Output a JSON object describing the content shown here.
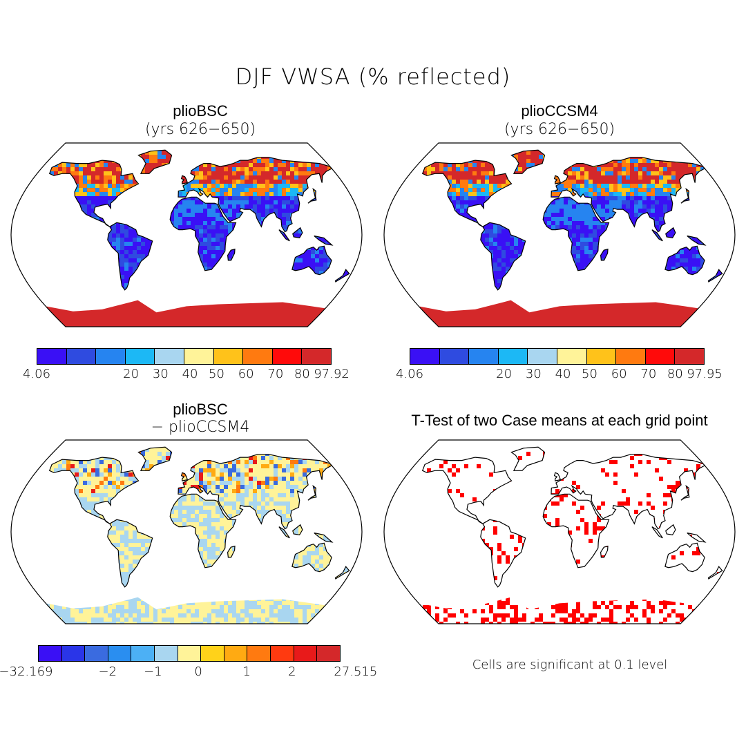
{
  "main_title": "DJF VWSA (% reflected)",
  "panels": {
    "tl": {
      "title": "plioBSC",
      "subtitle": "(yrs 626−650)"
    },
    "tr": {
      "title": "plioCCSM4",
      "subtitle": "(yrs 626−650)"
    },
    "bl": {
      "title": "plioBSC",
      "subtitle": "− plioCCSM4"
    },
    "br": {
      "title": "T-Test of two Case means at each grid point",
      "note": "Cells are significant at 0.1 level"
    }
  },
  "colorbars": {
    "tl": {
      "colors": [
        "#3a10f5",
        "#2f4be0",
        "#2684f0",
        "#1cb8f5",
        "#a9d6f0",
        "#fff399",
        "#ffc21a",
        "#ff7a10",
        "#ff0a0a",
        "#d4282a"
      ],
      "ticks": [
        "4.06",
        "20",
        "30",
        "40",
        "50",
        "60",
        "70",
        "80",
        "97.92"
      ]
    },
    "tr": {
      "colors": [
        "#3a10f5",
        "#2f4be0",
        "#2684f0",
        "#1cb8f5",
        "#a9d6f0",
        "#fff399",
        "#ffc21a",
        "#ff7a10",
        "#ff0a0a",
        "#d4282a"
      ],
      "ticks": [
        "4.06",
        "20",
        "30",
        "40",
        "50",
        "60",
        "70",
        "80",
        "97.95"
      ]
    },
    "bl": {
      "colors": [
        "#3a10f5",
        "#2a35e8",
        "#3a6be0",
        "#2a8ef0",
        "#4cb0f5",
        "#a9d6f0",
        "#fff399",
        "#ffd21a",
        "#ffaa12",
        "#ff7a10",
        "#ff3a10",
        "#e81a1a",
        "#d4282a"
      ],
      "ticks": [
        "−32.169",
        "−2",
        "−1",
        "0",
        "1",
        "2",
        "27.515"
      ]
    }
  },
  "map_colors": {
    "ocean": "#ffffff",
    "coast": "#000000",
    "high": "#d4282a",
    "low": "#3a10f5",
    "mid": "#2684f0",
    "diff_base": "#a9d6f0",
    "diff_warm": "#fff399",
    "signif": "#ff0000"
  }
}
